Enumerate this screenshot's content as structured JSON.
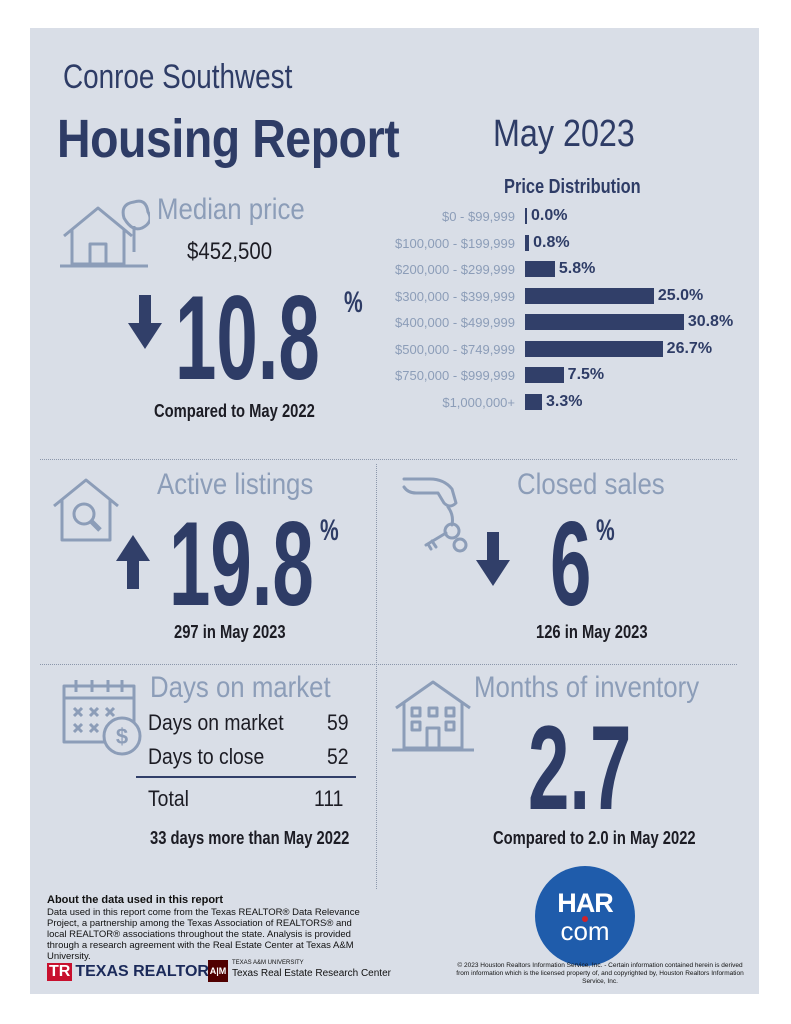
{
  "header": {
    "area": "Conroe Southwest",
    "title": "Housing Report",
    "month": "May 2023"
  },
  "median_price": {
    "title": "Median price",
    "value": "$452,500",
    "change": "10.8",
    "unit": "%",
    "direction": "down",
    "caption": "Compared to May 2022"
  },
  "chart_data": {
    "type": "bar",
    "orientation": "horizontal",
    "title": "Price Distribution",
    "categories": [
      "$0 - $99,999",
      "$100,000 - $199,999",
      "$200,000 - $299,999",
      "$300,000 - $399,999",
      "$400,000 - $499,999",
      "$500,000 - $749,999",
      "$750,000 - $999,999",
      "$1,000,000+"
    ],
    "values": [
      0.0,
      0.8,
      5.8,
      25.0,
      30.8,
      26.7,
      7.5,
      3.3
    ],
    "value_labels": [
      "0.0%",
      "0.8%",
      "5.8%",
      "25.0%",
      "30.8%",
      "26.7%",
      "7.5%",
      "3.3%"
    ],
    "xlabel": "",
    "ylabel": "",
    "xlim": [
      0,
      32
    ]
  },
  "active_listings": {
    "title": "Active listings",
    "change": "19.8",
    "unit": "%",
    "direction": "up",
    "caption": "297 in May 2023"
  },
  "closed_sales": {
    "title": "Closed sales",
    "change": "6",
    "unit": "%",
    "direction": "down",
    "caption": "126 in May 2023"
  },
  "days_on_market": {
    "title": "Days on market",
    "rows": [
      {
        "label": "Days on market",
        "value": "59"
      },
      {
        "label": "Days to close",
        "value": "52"
      }
    ],
    "total_label": "Total",
    "total_value": "111",
    "caption": "33 days more than May 2022"
  },
  "months_inventory": {
    "title": "Months of inventory",
    "value": "2.7",
    "caption": "Compared to 2.0 in May 2022"
  },
  "footer": {
    "about_title": "About the data used in this report",
    "about_text": "Data used in this report come from the Texas REALTOR® Data Relevance Project, a partnership among the Texas Association of REALTORS® and local REALTOR® associations throughout the state. Analysis is provided through a research agreement with the Real Estate Center at Texas A&M University.",
    "copyright": "© 2023 Houston Realtors Information Service, Inc. - Certain information contained herein is derived from information which is the licensed property of, and copyrighted by, Houston Realtors Information Service, Inc.",
    "logo_texas_realtors": "TEXAS REALTORS",
    "logo_tamu_small": "TEXAS A&M UNIVERSITY",
    "logo_tamu_name": "Texas Real Estate Research Center",
    "logo_har_top": "HAR",
    "logo_har_bottom": "com"
  },
  "colors": {
    "navy": "#313f69",
    "grey_blue": "#8c9db8",
    "panel_bg": "#d9dee7",
    "har_blue": "#1f5cab",
    "har_dot": "#d1232a"
  }
}
